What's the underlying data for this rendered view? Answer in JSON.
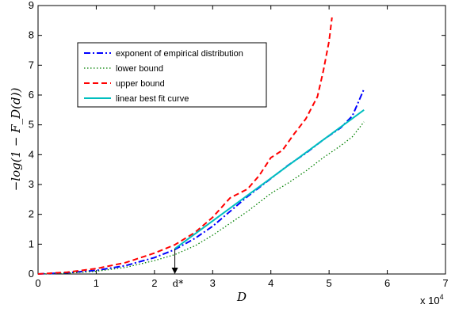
{
  "chart_data": {
    "type": "line",
    "xlabel": "D",
    "ylabel": "−log(1 − F_D(d))",
    "x_multiplier": "x 10^4",
    "xlim": [
      0,
      7
    ],
    "ylim": [
      0,
      9
    ],
    "xticks": [
      "0",
      "1",
      "2",
      "3",
      "4",
      "5",
      "6",
      "7"
    ],
    "yticks": [
      "0",
      "1",
      "2",
      "3",
      "4",
      "5",
      "6",
      "7",
      "8",
      "9"
    ],
    "grid": false,
    "legend_position": "top-left",
    "annotation": {
      "text": "d*",
      "x": 2.35,
      "y_from": 0.85,
      "y_to": 0
    },
    "series": [
      {
        "name": "exponent of empirical distribution",
        "color": "#0000ff",
        "style": "dashdot",
        "x": [
          0,
          0.5,
          1.0,
          1.5,
          2.0,
          2.35,
          2.7,
          3.0,
          3.3,
          3.6,
          4.0,
          4.3,
          4.6,
          4.9,
          5.2,
          5.4,
          5.6
        ],
        "y": [
          0,
          0.04,
          0.12,
          0.28,
          0.55,
          0.82,
          1.2,
          1.6,
          2.1,
          2.6,
          3.2,
          3.65,
          4.05,
          4.5,
          4.9,
          5.3,
          6.2
        ]
      },
      {
        "name": "lower bound",
        "color": "#008000",
        "style": "dotted",
        "x": [
          0,
          0.5,
          1.0,
          1.5,
          2.0,
          2.35,
          2.7,
          3.0,
          3.3,
          3.6,
          4.0,
          4.3,
          4.6,
          4.9,
          5.2,
          5.4,
          5.6
        ],
        "y": [
          0,
          0.03,
          0.09,
          0.22,
          0.45,
          0.65,
          0.95,
          1.3,
          1.7,
          2.1,
          2.7,
          3.05,
          3.45,
          3.9,
          4.3,
          4.6,
          5.1
        ]
      },
      {
        "name": "upper bound",
        "color": "#ff0000",
        "style": "dashed",
        "x": [
          0,
          0.5,
          1.0,
          1.5,
          2.0,
          2.35,
          2.7,
          3.0,
          3.3,
          3.6,
          3.8,
          4.0,
          4.2,
          4.4,
          4.6,
          4.8,
          4.9,
          5.0,
          5.05
        ],
        "y": [
          0,
          0.06,
          0.18,
          0.38,
          0.7,
          0.98,
          1.4,
          1.9,
          2.55,
          2.85,
          3.3,
          3.9,
          4.15,
          4.7,
          5.2,
          5.95,
          6.8,
          7.8,
          8.6
        ]
      },
      {
        "name": "linear best fit curve",
        "color": "#00bfbf",
        "style": "solid",
        "x": [
          2.35,
          5.6
        ],
        "y": [
          0.85,
          5.5
        ]
      }
    ]
  }
}
